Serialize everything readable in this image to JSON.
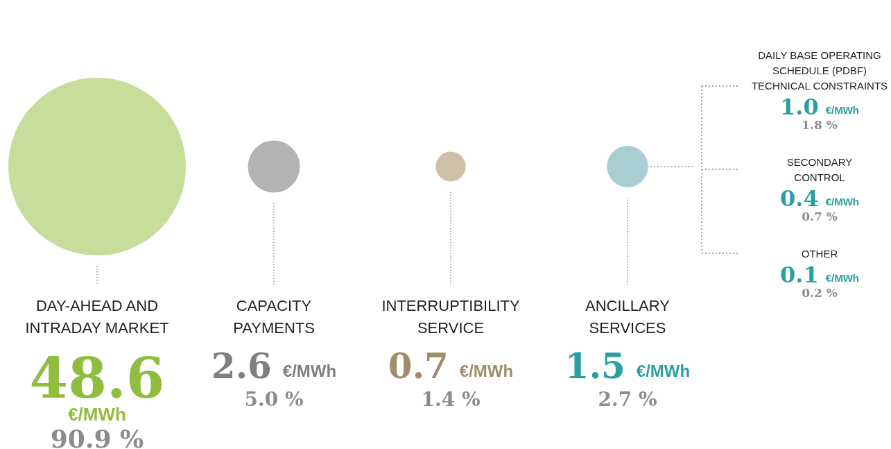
{
  "chart_data": [
    {
      "type": "other",
      "categories": [
        "DAY-AHEAD AND\nINTRADAY MARKET",
        "CAPACITY\nPAYMENTS",
        "INTERRUPTIBILITY\nSERVICE",
        "ANCILLARY\nSERVICES"
      ],
      "colors": [
        "#c7dd9c",
        "#b3b3b3",
        "#cdbfa8",
        "#a8cdd2"
      ],
      "series": [
        {
          "values": [
            48.6,
            2.6,
            0.7,
            1.5
          ],
          "value_labels": [
            "48.6 €/MWh",
            "2.6 €/MWh",
            "0.7 €/MWh",
            "1.5 €/MWh"
          ],
          "colors": [
            "#8fbd3f",
            "#7f7f7f",
            "#a08c6a",
            "#2a9fa2"
          ]
        },
        {
          "values": [
            90.9,
            5.0,
            1.4,
            2.7
          ],
          "value_labels": [
            "90.9 %",
            "5.0 %",
            "1.4 %",
            "2.7 %"
          ],
          "color": "#8c8c8c"
        }
      ]
    },
    {
      "type": "other",
      "categories": [
        "DAILY BASE OPERATING\nSCHEDULE (PDBF)\nTECHNICAL CONSTRAINTS",
        "SECONDARY\nCONTROL",
        "OTHER"
      ],
      "series": [
        {
          "values": [
            1.0,
            0.4,
            0.1
          ],
          "value_labels": [
            "1.0 €/MWh",
            "0.4 €/MWh",
            "0.1 €/MWh"
          ],
          "color": "#2a9fa2"
        },
        {
          "values": [
            1.8,
            0.7,
            0.2
          ],
          "value_labels": [
            "1.8 %",
            "0.7 %",
            "0.2 %"
          ],
          "color": "#8c8c8c"
        }
      ]
    }
  ]
}
